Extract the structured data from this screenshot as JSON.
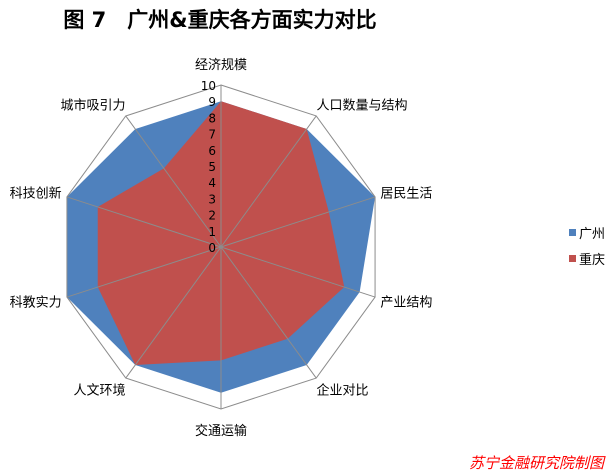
{
  "chart_data": {
    "type": "radar",
    "title": "图 7　广州&重庆各方面实力对比",
    "categories": [
      "经济规模",
      "人口数量与结构",
      "居民生活",
      "产业结构",
      "企业对比",
      "交通运输",
      "人文环境",
      "科教实力",
      "科技创新",
      "城市吸引力"
    ],
    "series": [
      {
        "name": "广州",
        "color": "#4f81bd",
        "values": [
          9,
          9,
          10,
          9,
          9,
          9,
          9,
          10,
          10,
          9
        ]
      },
      {
        "name": "重庆",
        "color": "#c0504d",
        "values": [
          9,
          9,
          7,
          8,
          7,
          7,
          9,
          8,
          8,
          6
        ]
      }
    ],
    "rlim": [
      0,
      10
    ],
    "ticks": [
      "0",
      "1",
      "2",
      "3",
      "4",
      "5",
      "6",
      "7",
      "8",
      "9",
      "10"
    ],
    "grid": true,
    "legend": "right"
  },
  "footer": "苏宁金融研究院制图"
}
